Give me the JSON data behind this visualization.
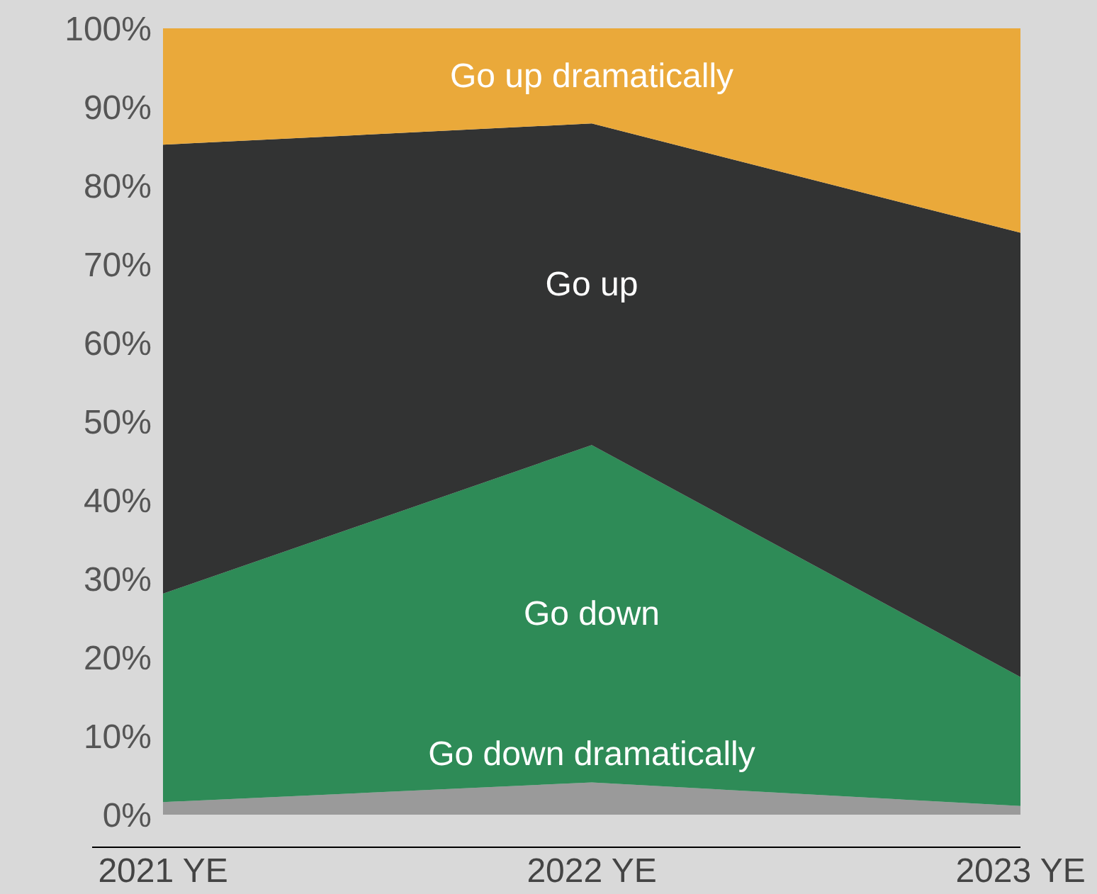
{
  "chart_data": {
    "type": "area",
    "stacked": true,
    "categories": [
      "2021 YE",
      "2022 YE",
      "2023 YE"
    ],
    "series": [
      {
        "name": "Go down dramatically",
        "color": "#9a9a9a",
        "values": [
          1.6,
          4.1,
          1.1
        ]
      },
      {
        "name": "Go down",
        "color": "#2e8b57",
        "values": [
          26.5,
          42.9,
          16.4
        ]
      },
      {
        "name": "Go up",
        "color": "#323333",
        "values": [
          57.1,
          40.9,
          56.5
        ]
      },
      {
        "name": "Go up dramatically",
        "color": "#eaa93a",
        "values": [
          14.8,
          12.1,
          26.0
        ]
      }
    ],
    "ylim": [
      0,
      100
    ],
    "yticks": [
      {
        "value": 0,
        "label": "0%"
      },
      {
        "value": 10,
        "label": "10%"
      },
      {
        "value": 20,
        "label": "20%"
      },
      {
        "value": 30,
        "label": "30%"
      },
      {
        "value": 40,
        "label": "40%"
      },
      {
        "value": 50,
        "label": "50%"
      },
      {
        "value": 60,
        "label": "60%"
      },
      {
        "value": 70,
        "label": "70%"
      },
      {
        "value": 80,
        "label": "80%"
      },
      {
        "value": 90,
        "label": "90%"
      },
      {
        "value": 100,
        "label": "100%"
      }
    ],
    "grid": false,
    "legend": false
  }
}
